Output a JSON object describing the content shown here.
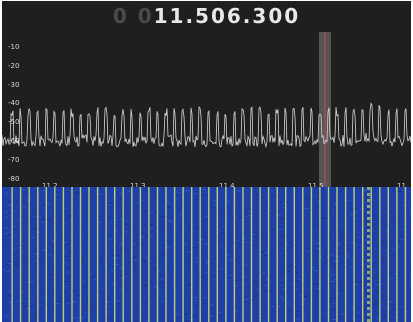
{
  "frequency": {
    "dim_digits": "0 0",
    "value": "11.506.300"
  },
  "spectrum": {
    "y_ticks": [
      "-10",
      "-20",
      "-30",
      "-40",
      "-50",
      "-60",
      "-70",
      "-80"
    ],
    "x_ticks": [
      "11.2",
      "11.3",
      "11.4",
      "11.5",
      "11."
    ]
  },
  "colors": {
    "background": "#1f1f1f",
    "trace": "#d6d6d6",
    "passband": "#555555",
    "tuning_line": "#c0504d",
    "waterfall_base": "#1e3fa8",
    "waterfall_line": "#d6e86a"
  }
}
